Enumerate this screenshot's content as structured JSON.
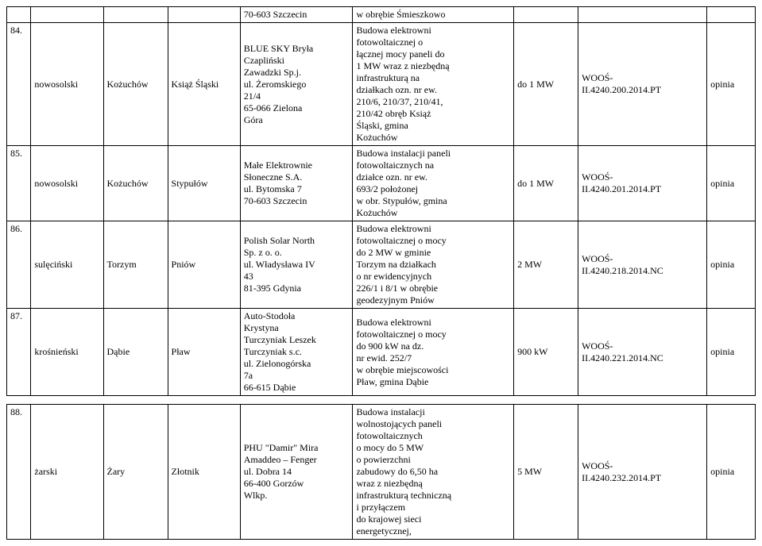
{
  "rows": [
    {
      "num": "",
      "a": "",
      "b": "",
      "c": "",
      "d": "70-603 Szczecin",
      "e": "w obrębie Śmieszkowo",
      "f": "",
      "g": "",
      "h": ""
    },
    {
      "num": "84.",
      "a": "nowosolski",
      "b": "Kożuchów",
      "c": "Książ Śląski",
      "d": "BLUE SKY Bryła\nCzapliński\nZawadzki Sp.j.\nul. Żeromskiego\n21/4\n65-066 Zielona\nGóra",
      "e": "Budowa elektrowni\nfotowoltaicznej o\nłącznej mocy paneli do\n1 MW wraz z niezbędną\ninfrastrukturą na\ndziałkach ozn. nr ew.\n210/6, 210/37, 210/41,\n210/42 obręb Książ\nŚląski, gmina\nKożuchów",
      "f": "do 1 MW",
      "g": "WOOŚ-\nII.4240.200.2014.PT",
      "h": "opinia"
    },
    {
      "num": "85.",
      "a": "nowosolski",
      "b": "Kożuchów",
      "c": "Stypułów",
      "d": "Małe Elektrownie\nSłoneczne S.A.\nul. Bytomska 7\n70-603 Szczecin",
      "e": "Budowa instalacji paneli\nfotowoltaicznych na\ndziałce ozn. nr ew.\n693/2 położonej\nw obr. Stypułów, gmina\nKożuchów",
      "f": "do 1 MW",
      "g": "WOOŚ-\nII.4240.201.2014.PT",
      "h": "opinia"
    },
    {
      "num": "86.",
      "a": "sulęciński",
      "b": "Torzym",
      "c": "Pniów",
      "d": "Polish Solar North\nSp. z o. o.\nul. Władysława IV\n43\n81-395 Gdynia",
      "e": "Budowa elektrowni\nfotowoltaicznej o mocy\ndo 2 MW w gminie\nTorzym na działkach\no nr ewidencyjnych\n226/1 i 8/1 w obrębie\ngeodezyjnym Pniów",
      "f": "2 MW",
      "g": "WOOŚ-\nII.4240.218.2014.NC",
      "h": "opinia"
    },
    {
      "num": "87.",
      "a": "krośnieński",
      "b": "Dąbie",
      "c": "Pław",
      "d": "Auto-Stodoła\nKrystyna\nTurczyniak Leszek\nTurczyniak s.c.\nul. Zielonogórska\n7a\n66-615 Dąbie",
      "e": "Budowa elektrowni\nfotowoltaicznej o mocy\ndo 900 kW na dz.\n nr ewid. 252/7\nw obrębie miejscowości\nPław, gmina Dąbie",
      "f": "900 kW",
      "g": "WOOŚ-\nII.4240.221.2014.NC",
      "h": "opinia"
    },
    {
      "num": "88.",
      "a": "żarski",
      "b": "Żary",
      "c": "Złotnik",
      "d": "PHU \"Damir\" Mira\nAmaddeo – Fenger\nul. Dobra 14\n66-400 Gorzów\nWlkp.",
      "e": "Budowa instalacji\nwolnostojących paneli\nfotowoltaicznych\no mocy do 5 MW\no powierzchni\nzabudowy do 6,50 ha\nwraz z niezbędną\ninfrastrukturą techniczną\ni przyłączem\ndo krajowej sieci\nenergetycznej,",
      "f": "5 MW",
      "g": "WOOŚ-\nII.4240.232.2014.PT",
      "h": "opinia"
    }
  ]
}
